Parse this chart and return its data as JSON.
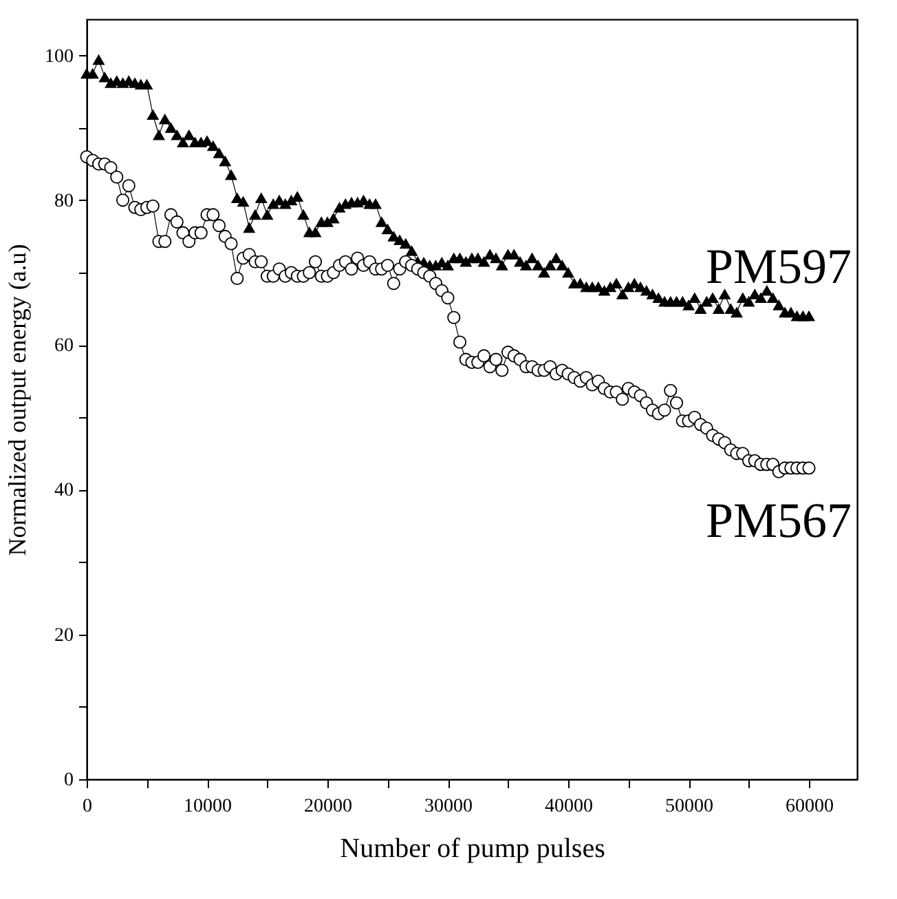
{
  "chart_data": {
    "type": "line",
    "xlabel": "Number of pump pulses",
    "ylabel": "Normalized output energy (a.u)",
    "xlim": [
      0,
      64000
    ],
    "ylim": [
      0,
      105
    ],
    "xticks": [
      0,
      {
        "value": 5000,
        "label": null
      },
      10000,
      {
        "value": 15000,
        "label": null
      },
      20000,
      {
        "value": 25000,
        "label": null
      },
      30000,
      {
        "value": 35000,
        "label": null
      },
      40000,
      {
        "value": 45000,
        "label": null
      },
      50000,
      {
        "value": 55000,
        "label": null
      },
      60000
    ],
    "yticks": [
      0,
      {
        "value": 10,
        "label": null
      },
      20,
      {
        "value": 30,
        "label": null
      },
      40,
      {
        "value": 50,
        "label": null
      },
      60,
      {
        "value": 70,
        "label": null
      },
      80,
      {
        "value": 90,
        "label": null
      },
      100
    ],
    "line_style": "solid",
    "x": [
      0,
      500,
      1000,
      1500,
      2000,
      2500,
      3000,
      3500,
      4000,
      4500,
      5000,
      5500,
      6000,
      6500,
      7000,
      7500,
      8000,
      8500,
      9000,
      9500,
      10000,
      10500,
      11000,
      11500,
      12000,
      12500,
      13000,
      13500,
      14000,
      14500,
      15000,
      15500,
      16000,
      16500,
      17000,
      17500,
      18000,
      18500,
      19000,
      19500,
      20000,
      20500,
      21000,
      21500,
      22000,
      22500,
      23000,
      23500,
      24000,
      24500,
      25000,
      25500,
      26000,
      26500,
      27000,
      27500,
      28000,
      28500,
      29000,
      29500,
      30000,
      30500,
      31000,
      31500,
      32000,
      32500,
      33000,
      33500,
      34000,
      34500,
      35000,
      35500,
      36000,
      36500,
      37000,
      37500,
      38000,
      38500,
      39000,
      39500,
      40000,
      40500,
      41000,
      41500,
      42000,
      42500,
      43000,
      43500,
      44000,
      44500,
      45000,
      45500,
      46000,
      46500,
      47000,
      47500,
      48000,
      48500,
      49000,
      49500,
      50000,
      50500,
      51000,
      51500,
      52000,
      52500,
      53000,
      53500,
      54000,
      54500,
      55000,
      55500,
      56000,
      56500,
      57000,
      57500,
      58000,
      58500,
      59000,
      59500,
      60000
    ],
    "series": [
      {
        "name": "PM597",
        "color": "#000000",
        "marker": "triangle",
        "values": [
          97.5,
          97.5,
          99.4,
          97,
          96.2,
          96.5,
          96.2,
          96.5,
          96.2,
          96,
          96,
          91.8,
          89,
          91.2,
          90,
          89,
          88,
          89,
          88,
          88,
          88.2,
          87.5,
          86.5,
          85.4,
          83.5,
          80.3,
          79.8,
          76.2,
          78,
          80.3,
          78,
          79.5,
          80,
          79.5,
          80,
          80.5,
          78,
          75.6,
          75.6,
          77,
          77,
          77.5,
          79,
          79.5,
          79.7,
          79.7,
          80,
          79.5,
          79.5,
          77,
          76,
          75,
          74.5,
          74,
          73,
          71.5,
          71.4,
          71,
          71,
          71.4,
          71,
          72,
          72,
          71.5,
          72,
          72,
          71.5,
          72.5,
          72,
          71,
          72.5,
          72.5,
          71.5,
          71,
          72,
          71,
          70,
          71,
          72,
          71,
          70,
          68.5,
          68.5,
          68,
          68,
          68,
          67.5,
          68,
          68.5,
          67,
          68,
          68.5,
          68,
          67.5,
          67,
          66.5,
          66,
          66,
          66,
          66,
          65.5,
          66.5,
          65,
          66,
          66.5,
          65,
          67,
          65,
          64.5,
          66.5,
          66,
          67,
          66.5,
          67.5,
          66.5,
          65.5,
          64.5,
          64.5,
          64,
          64,
          64
        ]
      },
      {
        "name": "PM567",
        "color": "#000000",
        "marker": "circle",
        "values": [
          86,
          85.5,
          85,
          85,
          84.5,
          83.2,
          80,
          82,
          79,
          78.7,
          79,
          79.2,
          74.3,
          74.3,
          78,
          77,
          75.5,
          74.3,
          75.5,
          75.5,
          78,
          78,
          76.5,
          75,
          74,
          69.2,
          72,
          72.5,
          71.5,
          71.5,
          69.5,
          69.5,
          70.5,
          69.5,
          70,
          69.5,
          69.5,
          70,
          71.5,
          69.5,
          69.5,
          70,
          71,
          71.5,
          70.5,
          72,
          71,
          71.5,
          70.5,
          70.5,
          71,
          68.5,
          70.5,
          71.5,
          71,
          70.5,
          70,
          69.5,
          68.5,
          67.5,
          66.5,
          63.8,
          60.4,
          58,
          57.6,
          57.6,
          58.5,
          57,
          58,
          56.5,
          59,
          58.5,
          58,
          57,
          57,
          56.5,
          56.5,
          57,
          56,
          56.5,
          56,
          55.5,
          55,
          55.5,
          54.5,
          55,
          54,
          53.5,
          53.5,
          52.5,
          54,
          53.5,
          53,
          52,
          51,
          50.5,
          51,
          53.7,
          52,
          49.5,
          49.5,
          50,
          49,
          48.5,
          47.5,
          47,
          46.5,
          45.5,
          45,
          45,
          44,
          44,
          43.5,
          43.5,
          43.5,
          42.5,
          43,
          43,
          43,
          43,
          43
        ]
      }
    ]
  }
}
